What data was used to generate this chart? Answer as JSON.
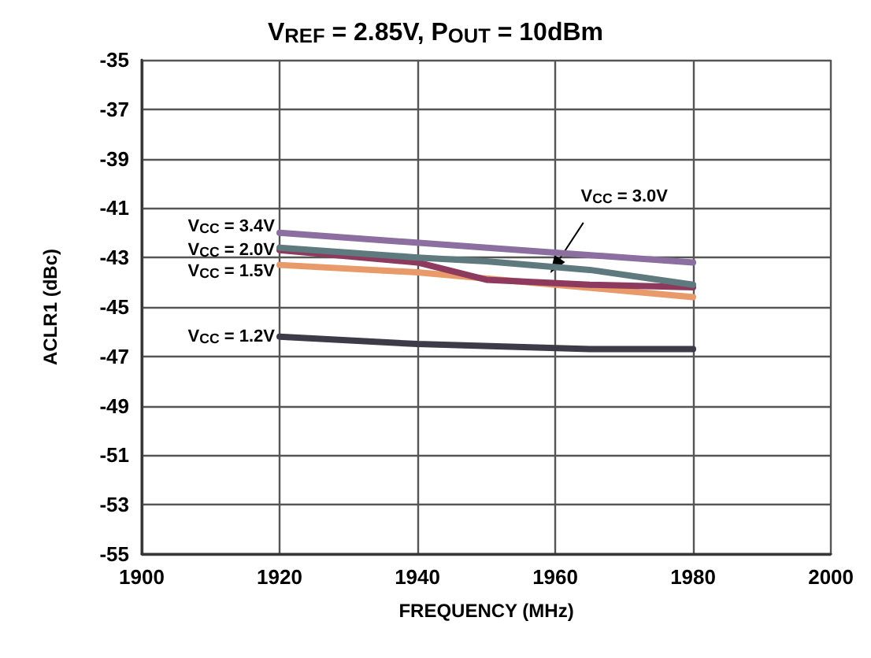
{
  "chart_data": {
    "type": "line",
    "title": "V$_{REF}$ = 2.85V, P$_{OUT}$ = 10dBm",
    "xlabel": "FREQUENCY (MHz)",
    "ylabel": "ACLR1 (dBc)",
    "xlim": [
      1900,
      2000
    ],
    "xticks": [
      1900,
      1920,
      1940,
      1960,
      1980,
      2000
    ],
    "ylim": [
      -55,
      -35
    ],
    "yticks": [
      -55,
      -53,
      -51,
      -49,
      -47,
      -45,
      -43,
      -41,
      -39,
      -37,
      -35
    ],
    "grid": true,
    "legend": false,
    "marker": "none",
    "line_style": "solid",
    "series": [
      {
        "name": "V$_{CC}$ = 3.4V",
        "color": "#8c6ea0",
        "x": [
          1920,
          1980
        ],
        "values": [
          -42.0,
          -43.2
        ]
      },
      {
        "name": "V$_{CC}$ = 3.0V",
        "color": "#5f7a7e",
        "x": [
          1920,
          1940,
          1950,
          1965,
          1980
        ],
        "values": [
          -42.6,
          -43.0,
          -43.15,
          -43.5,
          -44.1
        ]
      },
      {
        "name": "V$_{CC}$ = 2.0V",
        "color": "#8e3a5e",
        "x": [
          1920,
          1940,
          1950,
          1965,
          1980
        ],
        "values": [
          -42.7,
          -43.2,
          -43.9,
          -44.1,
          -44.2
        ]
      },
      {
        "name": "V$_{CC}$ = 1.5V",
        "color": "#e89a6a",
        "x": [
          1920,
          1940,
          1960,
          1980
        ],
        "values": [
          -43.3,
          -43.6,
          -44.1,
          -44.6
        ]
      },
      {
        "name": "V$_{CC}$ = 1.2V",
        "color": "#3e3b48",
        "x": [
          1920,
          1940,
          1965,
          1980
        ],
        "values": [
          -46.2,
          -46.5,
          -46.7,
          -46.7
        ]
      }
    ]
  }
}
